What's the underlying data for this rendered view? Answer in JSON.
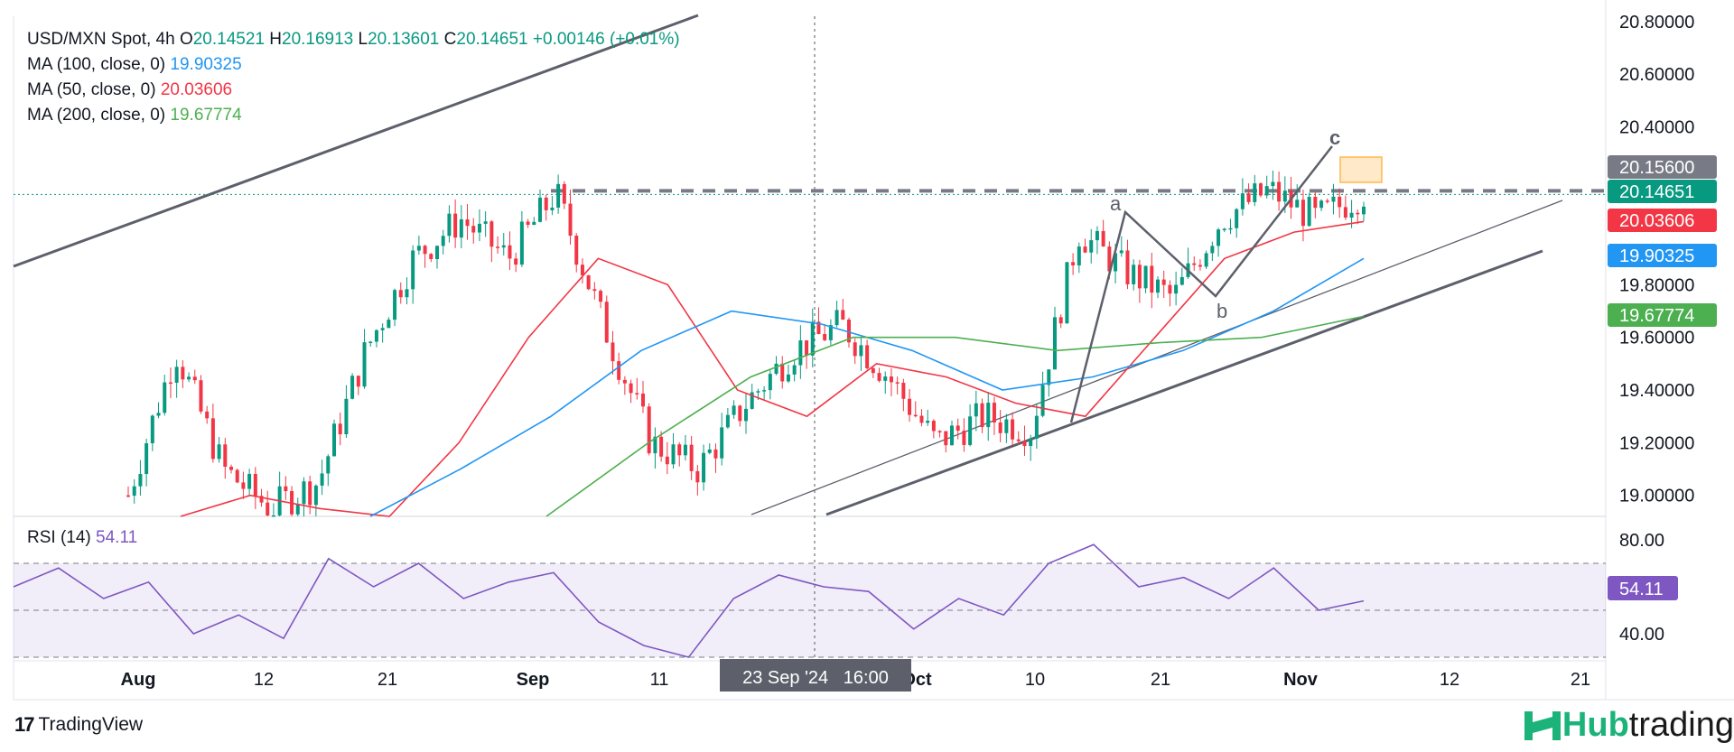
{
  "legend": {
    "symbol": "USD/MXN Spot, 4h",
    "o_label": "O",
    "o_value": "20.14521",
    "h_label": "H",
    "h_value": "20.16913",
    "l_label": "L",
    "l_value": "20.13601",
    "c_label": "C",
    "c_value": "20.14651",
    "change": "+0.00146 (+0.01%)",
    "ma100_label": "MA (100, close, 0)",
    "ma100_value": "19.90325",
    "ma50_label": "MA (50, close, 0)",
    "ma50_value": "20.03606",
    "ma200_label": "MA (200, close, 0)",
    "ma200_value": "19.67774"
  },
  "rsi_legend": {
    "label": "RSI (14)",
    "value": "54.11"
  },
  "crosshair_label": "23 Sep '24   16:00",
  "branding": {
    "tradingview": "TradingView",
    "tv_mark": "17",
    "hub1": "Hub",
    "hub2": "trading"
  },
  "colors": {
    "up": "#089981",
    "down": "#f23645",
    "ma100": "#2196f3",
    "ma50": "#f23645",
    "ma200": "#4caf50",
    "rsi": "#7e57c2"
  },
  "chart_data": {
    "type": "line",
    "title": "USD/MXN Spot, 4h",
    "price_axis": {
      "ticks": [
        "20.80000",
        "20.60000",
        "20.40000",
        "19.80000",
        "19.60000",
        "19.40000",
        "19.20000",
        "19.00000"
      ],
      "ylim": [
        18.92,
        20.82
      ]
    },
    "rsi_axis": {
      "ticks": [
        "80.00",
        "40.00"
      ],
      "ylim": [
        30,
        90
      ],
      "bands": [
        70,
        50,
        30
      ]
    },
    "time_axis": {
      "ticks": [
        "Aug",
        "12",
        "21",
        "Sep",
        "11",
        "Oct",
        "10",
        "21",
        "Nov",
        "12",
        "21"
      ]
    },
    "price_labels": [
      {
        "value": "20.15600",
        "color": "#787b86"
      },
      {
        "value": "20.14651",
        "color": "#089981"
      },
      {
        "value": "20.03606",
        "color": "#f23645"
      },
      {
        "value": "19.90325",
        "color": "#2196f3"
      },
      {
        "value": "19.67774",
        "color": "#4caf50"
      }
    ],
    "rsi_label": {
      "value": "54.11",
      "color": "#7e57c2"
    },
    "resistance_level": 20.15,
    "wave_labels": [
      "a",
      "b",
      "c"
    ],
    "series": [
      {
        "name": "USD/MXN Spot",
        "values_close": [
          19.0,
          19.55,
          19.1,
          18.95,
          19.05,
          19.55,
          19.9,
          20.05,
          19.9,
          20.15,
          19.65,
          19.2,
          19.1,
          19.35,
          19.55,
          19.65,
          19.45,
          19.2,
          19.3,
          19.25,
          20.0,
          19.85,
          19.75,
          20.05,
          20.16,
          20.05,
          20.15
        ]
      },
      {
        "name": "MA (50, close, 0)",
        "values": [
          18.6,
          19.0,
          18.95,
          18.9,
          19.2,
          19.6,
          19.9,
          19.8,
          19.4,
          19.3,
          19.5,
          19.45,
          19.35,
          19.3,
          19.6,
          19.9,
          20.0,
          20.04
        ]
      },
      {
        "name": "MA (100, close, 0)",
        "values": [
          18.9,
          19.1,
          19.3,
          19.55,
          19.7,
          19.65,
          19.55,
          19.4,
          19.45,
          19.55,
          19.7,
          19.9
        ]
      },
      {
        "name": "MA (200, close, 0)",
        "values": [
          18.9,
          19.2,
          19.45,
          19.6,
          19.6,
          19.55,
          19.58,
          19.6,
          19.68
        ]
      },
      {
        "name": "RSI (14)",
        "values": [
          60,
          68,
          55,
          62,
          40,
          48,
          38,
          72,
          60,
          70,
          55,
          62,
          66,
          45,
          35,
          28,
          55,
          65,
          60,
          58,
          42,
          55,
          48,
          70,
          78,
          60,
          64,
          55,
          68,
          50,
          54
        ]
      }
    ]
  }
}
